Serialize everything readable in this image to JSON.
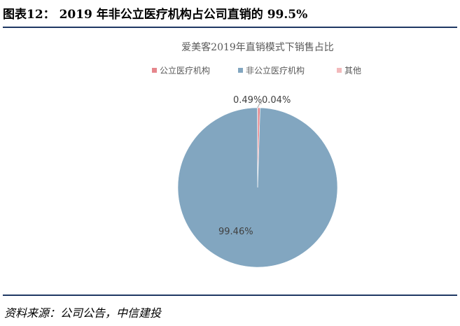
{
  "figure": {
    "title": "图表12： 2019 年非公立医疗机构占公司直销的 99.5%",
    "source": "资料来源：公司公告，中信建投"
  },
  "chart_data": {
    "type": "pie",
    "title": "爱美客2019年直销模式下销售占比",
    "legend_position": "top",
    "categories": [
      "公立医疗机构",
      "非公立医疗机构",
      "其他"
    ],
    "values": [
      0.49,
      99.46,
      0.04
    ],
    "labels": [
      "0.49%",
      "99.46%",
      "0.04%"
    ],
    "colors": [
      "#e6868c",
      "#82a6c0",
      "#f2b9bb"
    ]
  }
}
